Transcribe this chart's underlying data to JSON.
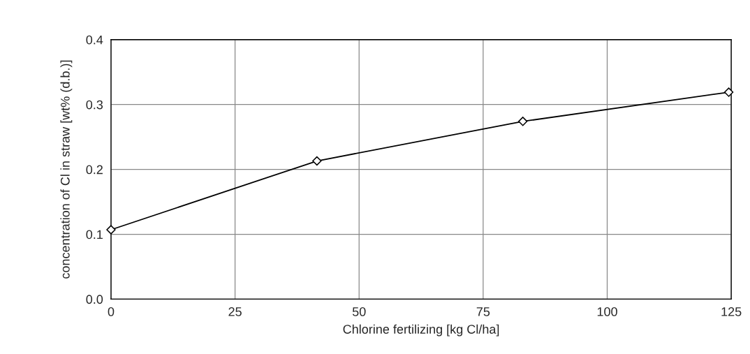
{
  "chart_data": {
    "type": "line",
    "xlabel": "Chlorine fertilizing [kg Cl/ha]",
    "ylabel": "concentration of Cl in straw [wt% (d.b.)]",
    "x": [
      0,
      41.5,
      83,
      124.5
    ],
    "series": [
      {
        "color": "#000000",
        "values": [
          0.107,
          0.213,
          0.274,
          0.319
        ]
      }
    ],
    "xlim": [
      0,
      125
    ],
    "xticks": [
      0,
      25,
      50,
      75,
      100,
      125
    ],
    "ylim": [
      0,
      0.4
    ],
    "yticks": [
      {
        "value": 0,
        "label": "0.0"
      },
      {
        "value": 0.1,
        "label": "0.1"
      },
      {
        "value": 0.2,
        "label": "0.2"
      },
      {
        "value": 0.3,
        "label": "0.3"
      },
      {
        "value": 0.4,
        "label": "0.4"
      }
    ],
    "grid": true,
    "marker": "diamond",
    "line_style": "solid"
  }
}
